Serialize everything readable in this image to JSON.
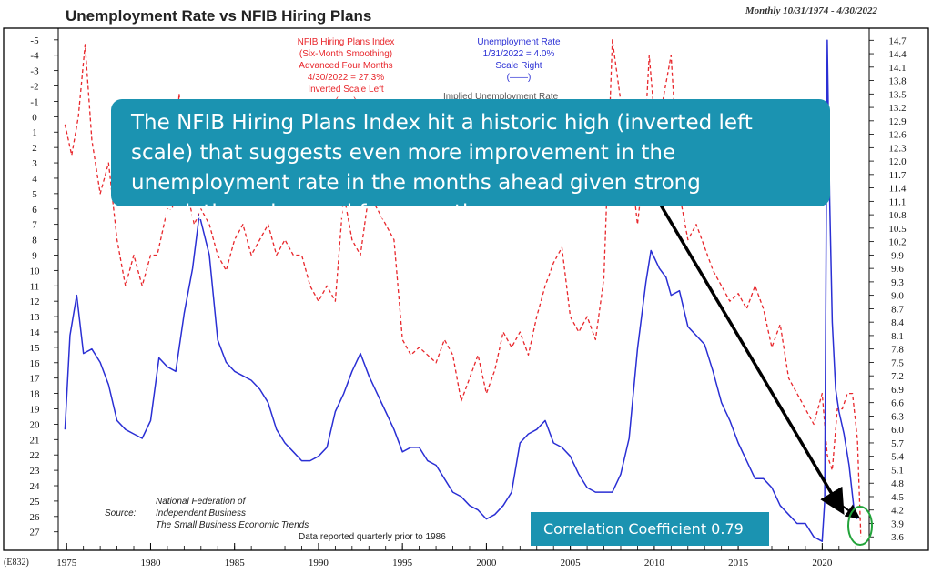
{
  "title": "Unemployment Rate vs NFIB Hiring Plans",
  "date_range": "Monthly 10/31/1974 - 4/30/2022",
  "legend_red": {
    "line1": "NFIB Hiring Plans Index",
    "line2": "(Six-Month Smoothing)",
    "line3": "Advanced Four Months",
    "line4": "4/30/2022 = 27.3%",
    "line5": "Inverted Scale Left",
    "line6": "(-----)"
  },
  "legend_blue": {
    "line1": "Unemployment Rate",
    "line2": "1/31/2022 = 4.0%",
    "line3": "Scale Right",
    "line4": "(——)"
  },
  "implied_label": "Implied Unemployment Rate",
  "callout_text": "The NFIB Hiring Plans Index hit a historic high (inverted left scale) that suggests even more improvement in the unemployment rate in the months ahead given strong correlation advanced four months",
  "correlation_text": "Correlation Coefficient 0.79",
  "source": {
    "label": "Source:",
    "line1": "National Federation of",
    "line2": "Independent Business",
    "line3": "The Small Business Economic Trends"
  },
  "note": "Data reported quarterly prior to 1986",
  "chart_code": "(E832)",
  "colors": {
    "nfib": "#e8262b",
    "unemployment": "#2a2fd4",
    "callout_bg": "#1b93b1",
    "circle": "#22a33a",
    "arrow": "#000000"
  },
  "chart_data": {
    "type": "line",
    "x_ticks": [
      "1975",
      "1980",
      "1985",
      "1990",
      "1995",
      "2000",
      "2005",
      "2010",
      "2015",
      "2020"
    ],
    "xlim": [
      1974.5,
      2022.8
    ],
    "left_axis": {
      "inverted": true,
      "ylim": [
        -5.7,
        28.2
      ],
      "ticks": [
        "-5",
        "-4",
        "-3",
        "-2",
        "-1",
        "0",
        "1",
        "2",
        "3",
        "4",
        "5",
        "6",
        "7",
        "8",
        "9",
        "10",
        "11",
        "12",
        "13",
        "14",
        "15",
        "16",
        "17",
        "18",
        "19",
        "20",
        "21",
        "22",
        "23",
        "24",
        "25",
        "26",
        "27"
      ]
    },
    "right_axis": {
      "ylim": [
        3.3,
        14.95
      ],
      "ticks": [
        "14.7",
        "14.4",
        "14.1",
        "13.8",
        "13.5",
        "13.2",
        "12.9",
        "12.6",
        "12.3",
        "12.0",
        "11.7",
        "11.4",
        "11.1",
        "10.8",
        "10.5",
        "10.2",
        "9.9",
        "9.6",
        "9.3",
        "9.0",
        "8.7",
        "8.4",
        "8.1",
        "7.8",
        "7.5",
        "7.2",
        "6.9",
        "6.6",
        "6.3",
        "6.0",
        "5.7",
        "5.4",
        "5.1",
        "4.8",
        "4.5",
        "4.2",
        "3.9",
        "3.6"
      ]
    },
    "series": [
      {
        "name": "NFIB Hiring Plans Index (Six-Month Smoothing) Advanced Four Months",
        "axis": "left",
        "style": "dashed",
        "x": [
          1974.9,
          1975.3,
          1975.7,
          1976.1,
          1976.5,
          1977.0,
          1977.5,
          1978.0,
          1978.5,
          1979.0,
          1979.5,
          1980.0,
          1980.4,
          1980.8,
          1981.0,
          1981.3,
          1981.7,
          1982.2,
          1982.6,
          1983.0,
          1983.5,
          1984.0,
          1984.5,
          1985.0,
          1985.5,
          1986.0,
          1986.5,
          1987.0,
          1987.5,
          1988.0,
          1988.5,
          1989.0,
          1989.5,
          1990.0,
          1990.5,
          1991.0,
          1991.5,
          1992.0,
          1992.5,
          1993.0,
          1993.5,
          1994.0,
          1994.5,
          1995.0,
          1995.5,
          1996.0,
          1996.5,
          1997.0,
          1997.5,
          1998.0,
          1998.5,
          1999.0,
          1999.5,
          2000.0,
          2000.5,
          2001.0,
          2001.5,
          2002.0,
          2002.5,
          2003.0,
          2003.5,
          2004.0,
          2004.5,
          2005.0,
          2005.5,
          2006.0,
          2006.5,
          2007.0,
          2007.5,
          2008.0,
          2008.5,
          2009.0,
          2009.3,
          2009.7,
          2010.0,
          2010.5,
          2011.0,
          2011.5,
          2012.0,
          2012.5,
          2013.0,
          2013.5,
          2014.0,
          2014.5,
          2015.0,
          2015.5,
          2016.0,
          2016.5,
          2017.0,
          2017.5,
          2018.0,
          2018.5,
          2019.0,
          2019.5,
          2020.0,
          2020.3,
          2020.6,
          2020.9,
          2021.2,
          2021.5,
          2021.8,
          2022.1,
          2022.3
        ],
        "values": [
          0.5,
          2.5,
          0,
          -4.7,
          1.5,
          5,
          3,
          8,
          11,
          9,
          11,
          9,
          9,
          7,
          6,
          6,
          -1.5,
          5,
          7,
          6,
          7,
          9,
          10,
          8,
          7,
          9,
          8,
          7,
          9,
          8,
          9,
          9,
          11,
          12,
          11,
          12,
          5,
          8,
          9,
          5,
          6,
          7,
          8,
          14.5,
          15.5,
          15,
          15.5,
          16,
          14.5,
          15.5,
          18.5,
          17,
          15.5,
          18,
          16.5,
          14,
          15,
          14,
          15.5,
          13,
          11,
          9.5,
          8.5,
          13,
          14,
          13,
          14.5,
          10.5,
          -5,
          -1,
          2,
          7,
          4,
          -4,
          0,
          -1,
          -4,
          5,
          8,
          7,
          8.5,
          10,
          11,
          12,
          11.5,
          12.5,
          11,
          12.5,
          15,
          13.5,
          17,
          18,
          19,
          20,
          18,
          22,
          23,
          19,
          19,
          18,
          18,
          21,
          27.3
        ]
      },
      {
        "name": "Unemployment Rate",
        "axis": "right",
        "style": "solid",
        "x": [
          1974.9,
          1975.2,
          1975.6,
          1976.0,
          1976.5,
          1977.0,
          1977.5,
          1978.0,
          1978.5,
          1979.0,
          1979.5,
          1980.0,
          1980.5,
          1981.0,
          1981.5,
          1982.0,
          1982.5,
          1982.9,
          1983.5,
          1984.0,
          1984.5,
          1985.0,
          1985.5,
          1986.0,
          1986.5,
          1987.0,
          1987.5,
          1988.0,
          1988.5,
          1989.0,
          1989.5,
          1990.0,
          1990.5,
          1991.0,
          1991.5,
          1992.0,
          1992.5,
          1993.0,
          1993.5,
          1994.0,
          1994.5,
          1995.0,
          1995.5,
          1996.0,
          1996.5,
          1997.0,
          1997.5,
          1998.0,
          1998.5,
          1999.0,
          1999.5,
          2000.0,
          2000.5,
          2001.0,
          2001.5,
          2002.0,
          2002.5,
          2003.0,
          2003.5,
          2004.0,
          2004.5,
          2005.0,
          2005.5,
          2006.0,
          2006.5,
          2007.0,
          2007.5,
          2008.0,
          2008.5,
          2009.0,
          2009.5,
          2009.8,
          2010.3,
          2010.7,
          2011.0,
          2011.5,
          2012.0,
          2012.5,
          2013.0,
          2013.5,
          2014.0,
          2014.5,
          2015.0,
          2015.5,
          2016.0,
          2016.5,
          2017.0,
          2017.5,
          2018.0,
          2018.5,
          2019.0,
          2019.5,
          2020.0,
          2020.15,
          2020.3,
          2020.45,
          2020.6,
          2020.8,
          2021.0,
          2021.3,
          2021.6,
          2021.9,
          2022.08
        ],
        "values": [
          6.0,
          8.1,
          9.0,
          7.7,
          7.8,
          7.5,
          7.0,
          6.2,
          6.0,
          5.9,
          5.8,
          6.2,
          7.6,
          7.4,
          7.3,
          8.6,
          9.6,
          10.8,
          9.9,
          8.0,
          7.5,
          7.3,
          7.2,
          7.1,
          6.9,
          6.6,
          6.0,
          5.7,
          5.5,
          5.3,
          5.3,
          5.4,
          5.6,
          6.4,
          6.8,
          7.3,
          7.7,
          7.2,
          6.8,
          6.4,
          6.0,
          5.5,
          5.6,
          5.6,
          5.3,
          5.2,
          4.9,
          4.6,
          4.5,
          4.3,
          4.2,
          4.0,
          4.1,
          4.3,
          4.6,
          5.7,
          5.9,
          6.0,
          6.2,
          5.7,
          5.6,
          5.4,
          5.0,
          4.7,
          4.6,
          4.6,
          4.6,
          5.0,
          5.8,
          7.8,
          9.3,
          10.0,
          9.6,
          9.4,
          9.0,
          9.1,
          8.3,
          8.1,
          7.9,
          7.3,
          6.6,
          6.2,
          5.7,
          5.3,
          4.9,
          4.9,
          4.7,
          4.3,
          4.1,
          3.9,
          3.9,
          3.6,
          3.5,
          4.4,
          14.7,
          11.1,
          8.4,
          6.9,
          6.4,
          5.9,
          5.2,
          4.2,
          4.0
        ]
      }
    ]
  }
}
